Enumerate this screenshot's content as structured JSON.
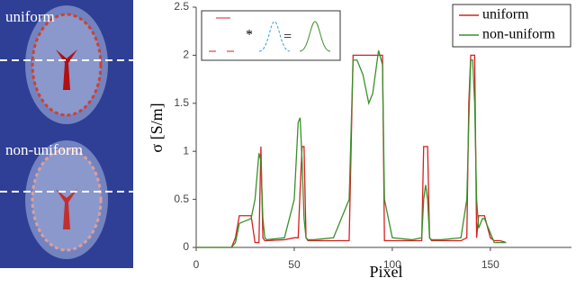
{
  "chart_data": {
    "type": "line",
    "image_labels": [
      "uniform",
      "non-uniform"
    ],
    "annotations": [
      "*",
      "="
    ],
    "xlabel": "Pixel",
    "ylabel": "σ [S/m]",
    "xlim": [
      0,
      190
    ],
    "xticks": [
      0,
      50,
      100,
      150
    ],
    "ylim": [
      0,
      2.5
    ],
    "yticks": [
      0,
      0.5,
      1,
      1.5,
      2,
      2.5
    ],
    "legend": "upper right",
    "x": [
      0,
      18,
      20,
      22,
      28,
      30,
      32,
      33,
      34,
      35,
      36,
      45,
      50,
      52,
      53,
      54,
      55,
      56,
      57,
      60,
      70,
      78,
      80,
      82,
      85,
      88,
      90,
      93,
      95,
      96,
      100,
      110,
      115,
      116,
      117,
      118,
      119,
      120,
      125,
      135,
      138,
      139,
      140,
      141,
      142,
      143,
      144,
      146,
      147,
      150,
      152,
      155,
      158
    ],
    "series": [
      {
        "name": "uniform",
        "color": "#d62020",
        "values": [
          0,
          0,
          0.1,
          0.33,
          0.33,
          0.05,
          0.05,
          1.05,
          0.1,
          0.07,
          0.07,
          0.08,
          0.1,
          0.1,
          0.6,
          1.05,
          1.05,
          0.1,
          0.07,
          0.07,
          0.07,
          0.07,
          2,
          2,
          2,
          2,
          2,
          2,
          2,
          0.07,
          0.07,
          0.07,
          0.07,
          1.05,
          1.05,
          1.05,
          0.1,
          0.07,
          0.07,
          0.07,
          0.1,
          1.5,
          2,
          2,
          2,
          0.1,
          0.33,
          0.33,
          0.33,
          0.1,
          0.07,
          0.07,
          0.05
        ]
      },
      {
        "name": "non-uniform",
        "color": "#3a8f2a",
        "values": [
          0,
          0,
          0.05,
          0.25,
          0.3,
          0.5,
          0.98,
          0.9,
          0.3,
          0.1,
          0.08,
          0.1,
          0.5,
          1.3,
          1.35,
          0.9,
          0.3,
          0.1,
          0.08,
          0.08,
          0.1,
          0.5,
          1.95,
          1.95,
          1.8,
          1.5,
          1.6,
          2.05,
          1.9,
          0.5,
          0.1,
          0.08,
          0.1,
          0.5,
          0.65,
          0.5,
          0.1,
          0.08,
          0.08,
          0.1,
          0.5,
          1.3,
          1.95,
          1.95,
          1.5,
          0.5,
          0.2,
          0.3,
          0.3,
          0.15,
          0.05,
          0.05,
          0.05
        ]
      }
    ]
  }
}
